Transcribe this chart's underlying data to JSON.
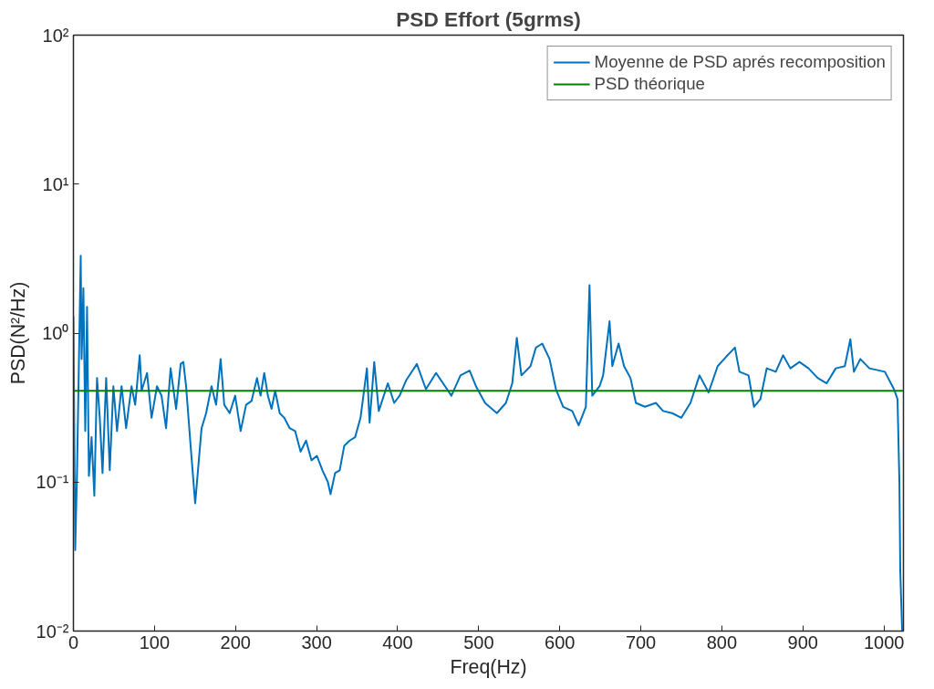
{
  "chart_data": {
    "type": "line",
    "title": "PSD Effort (5grms)",
    "xlabel": "Freq(Hz)",
    "ylabel": "PSD(N²/Hz)",
    "log": "y",
    "grid": false,
    "legend": "top right",
    "line_style": "solid",
    "marker": "none",
    "xlim": [
      0,
      1024
    ],
    "xticks": [
      0,
      100,
      200,
      300,
      400,
      500,
      600,
      700,
      800,
      900,
      1000
    ],
    "ylim": [
      0.01,
      100
    ],
    "yticks": [
      {
        "value": 0.01,
        "label": "10⁻²"
      },
      {
        "value": 0.1,
        "label": "10⁻¹"
      },
      {
        "value": 1,
        "label": "10⁰"
      },
      {
        "value": 10,
        "label": "10¹"
      },
      {
        "value": 100,
        "label": "10²"
      }
    ],
    "series": [
      {
        "name": "Moyenne de PSD aprés recomposition",
        "color": "#0072bd",
        "x": [
          0,
          2.2,
          4.5,
          9.0,
          10.1,
          12.3,
          14.6,
          16.8,
          19.1,
          22.4,
          25.8,
          29.1,
          32.5,
          35.9,
          40.4,
          44.8,
          49.3,
          53.8,
          59.4,
          65.0,
          71.7,
          76.2,
          81.8,
          84.1,
          90.8,
          96.4,
          103.1,
          108.7,
          114.3,
          119.9,
          126.7,
          132.3,
          135.6,
          139.0,
          144.6,
          150.2,
          154.7,
          158.1,
          163.7,
          170.4,
          176.0,
          181.6,
          186.1,
          192.8,
          199.5,
          206.3,
          213.0,
          219.7,
          226.5,
          230.9,
          235.4,
          239.9,
          244.4,
          248.9,
          254.5,
          260.1,
          266.8,
          273.5,
          280.3,
          287.0,
          293.7,
          300.4,
          307.2,
          313.9,
          317.2,
          322.8,
          328.5,
          334.1,
          340.8,
          347.5,
          354.2,
          362.1,
          365.4,
          371.1,
          376.7,
          387.9,
          395.7,
          402.4,
          410.3,
          423.7,
          434.9,
          447.3,
          458.5,
          466.3,
          477.5,
          488.8,
          496.6,
          507.8,
          522.4,
          533.6,
          541.4,
          547.0,
          552.7,
          563.9,
          570.6,
          578.4,
          587.4,
          595.3,
          604.2,
          615.4,
          623.3,
          632.2,
          636.7,
          640.1,
          649.1,
          653.5,
          661.4,
          664.8,
          672.6,
          679.3,
          687.2,
          693.9,
          705.1,
          718.6,
          727.5,
          738.7,
          750.0,
          761.2,
          772.4,
          783.6,
          794.8,
          804.9,
          816.1,
          821.7,
          832.9,
          839.6,
          847.5,
          855.3,
          866.5,
          875.5,
          884.5,
          895.7,
          906.9,
          918.1,
          929.3,
          940.5,
          951.7,
          958.5,
          962.9,
          970.8,
          982.0,
          1001.1,
          1012.3,
          1016.7,
          1019.0,
          1020.1,
          1021.2,
          1022.4
        ],
        "values": [
          1.3,
          0.035,
          0.12,
          3.3,
          0.67,
          2.0,
          0.22,
          1.5,
          0.11,
          0.2,
          0.081,
          0.5,
          0.27,
          0.115,
          0.5,
          0.12,
          0.44,
          0.22,
          0.44,
          0.23,
          0.44,
          0.33,
          0.71,
          0.41,
          0.54,
          0.27,
          0.44,
          0.38,
          0.23,
          0.58,
          0.31,
          0.62,
          0.64,
          0.44,
          0.175,
          0.072,
          0.14,
          0.23,
          0.29,
          0.44,
          0.33,
          0.67,
          0.33,
          0.29,
          0.38,
          0.22,
          0.33,
          0.35,
          0.5,
          0.38,
          0.54,
          0.38,
          0.31,
          0.41,
          0.29,
          0.27,
          0.23,
          0.22,
          0.16,
          0.19,
          0.14,
          0.15,
          0.12,
          0.1,
          0.083,
          0.115,
          0.12,
          0.175,
          0.19,
          0.2,
          0.27,
          0.58,
          0.25,
          0.64,
          0.3,
          0.46,
          0.34,
          0.38,
          0.48,
          0.62,
          0.42,
          0.54,
          0.44,
          0.38,
          0.52,
          0.56,
          0.44,
          0.34,
          0.29,
          0.34,
          0.46,
          0.93,
          0.52,
          0.6,
          0.8,
          0.85,
          0.67,
          0.42,
          0.32,
          0.3,
          0.24,
          0.32,
          2.1,
          0.38,
          0.44,
          0.52,
          1.2,
          0.6,
          0.85,
          0.6,
          0.5,
          0.34,
          0.32,
          0.34,
          0.3,
          0.29,
          0.27,
          0.34,
          0.52,
          0.4,
          0.6,
          0.69,
          0.8,
          0.55,
          0.52,
          0.32,
          0.36,
          0.58,
          0.55,
          0.71,
          0.58,
          0.64,
          0.58,
          0.5,
          0.46,
          0.58,
          0.6,
          0.91,
          0.55,
          0.67,
          0.58,
          0.55,
          0.42,
          0.36,
          0.1,
          0.025,
          0.016,
          0.01
        ]
      },
      {
        "name": "PSD théorique",
        "color": "#008000",
        "x": [
          0,
          1024
        ],
        "values": [
          0.41,
          0.41
        ]
      }
    ]
  }
}
